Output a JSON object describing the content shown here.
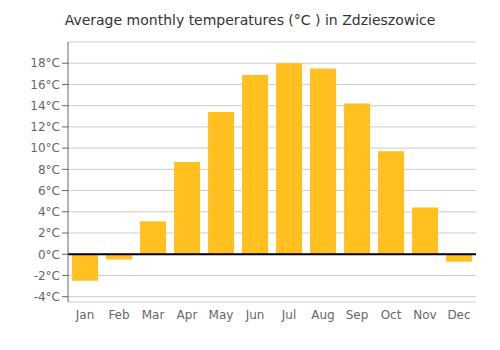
{
  "chart_data": {
    "type": "bar",
    "title": "Average monthly temperatures (°C ) in Zdzieszowice",
    "categories": [
      "Jan",
      "Feb",
      "Mar",
      "Apr",
      "May",
      "Jun",
      "Jul",
      "Aug",
      "Sep",
      "Oct",
      "Nov",
      "Dec"
    ],
    "values": [
      -2.5,
      -0.5,
      3.1,
      8.7,
      13.4,
      16.9,
      18.0,
      17.5,
      14.2,
      9.7,
      4.4,
      -0.7
    ],
    "color": "#FFC020",
    "ylim": [
      -4.5,
      20
    ],
    "yticks": [
      {
        "value": -4,
        "label": "-4°C"
      },
      {
        "value": -2,
        "label": "-2°C"
      },
      {
        "value": 0,
        "label": "0°C"
      },
      {
        "value": 2,
        "label": "2°C"
      },
      {
        "value": 4,
        "label": "4°C"
      },
      {
        "value": 6,
        "label": "6°C"
      },
      {
        "value": 8,
        "label": "8°C"
      },
      {
        "value": 10,
        "label": "10°C"
      },
      {
        "value": 12,
        "label": "12°C"
      },
      {
        "value": 14,
        "label": "14°C"
      },
      {
        "value": 16,
        "label": "16°C"
      },
      {
        "value": 18,
        "label": "18°C"
      }
    ],
    "grid": true
  }
}
